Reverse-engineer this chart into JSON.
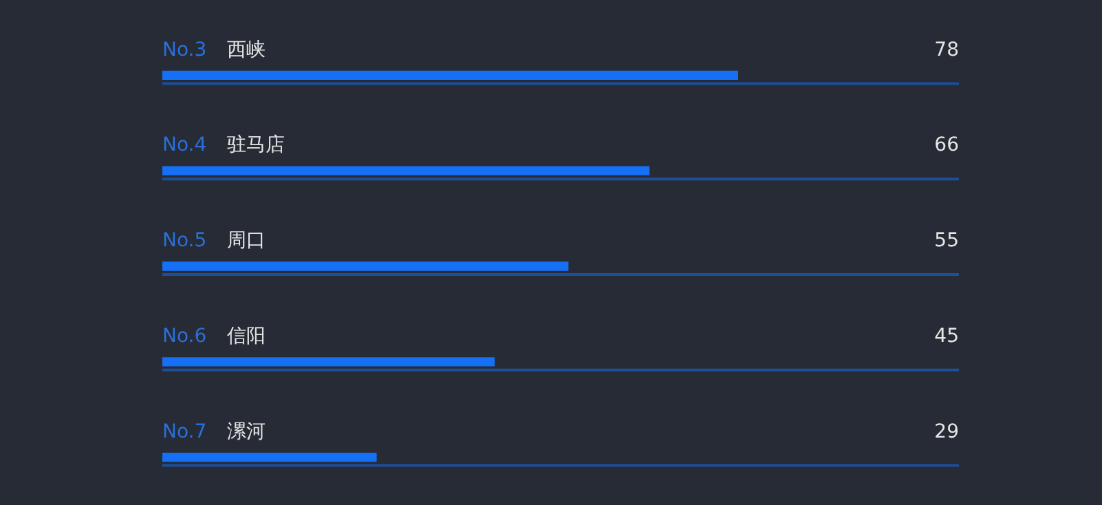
{
  "chart_data": {
    "type": "bar",
    "orientation": "horizontal",
    "categories": [
      "No.3 西峡",
      "No.4 驻马店",
      "No.5 周口",
      "No.6 信阳",
      "No.7 漯河"
    ],
    "values": [
      78,
      66,
      55,
      45,
      29
    ],
    "color": "#1670f5",
    "xlim": [
      0,
      108
    ],
    "tick_labels": false,
    "ref_lines": [
      {
        "axis": "y",
        "value": "No.3 西峡",
        "color": "#1d4e9a"
      },
      {
        "axis": "y",
        "value": "No.4 驻马店",
        "color": "#1d4e9a"
      },
      {
        "axis": "y",
        "value": "No.5 周口",
        "color": "#1d4e9a"
      },
      {
        "axis": "y",
        "value": "No.6 信阳",
        "color": "#1d4e9a"
      },
      {
        "axis": "y",
        "value": "No.7 漯河",
        "color": "#1d4e9a"
      }
    ],
    "legend": false,
    "data_labels": true
  }
}
